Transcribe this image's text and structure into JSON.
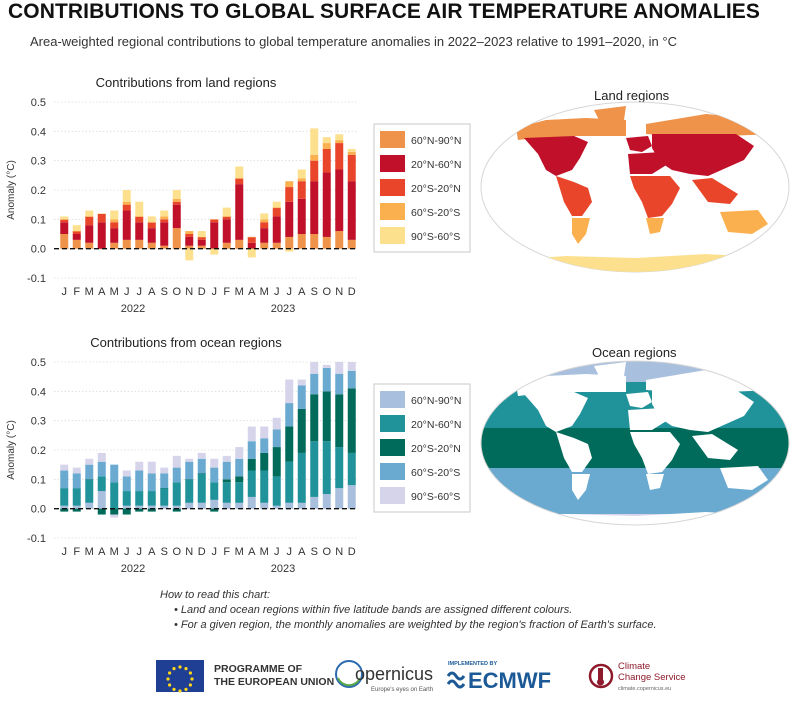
{
  "header": {
    "title": "CONTRIBUTIONS TO GLOBAL SURFACE AIR TEMPERATURE ANOMALIES",
    "subtitle": "Area-weighted regional contributions to global temperature anomalies in 2022–2023 relative to 1991–2020, in °C"
  },
  "colors": {
    "land": {
      "60°N-90°N": "#f0934a",
      "20°N-60°N": "#c0102a",
      "20°S-20°N": "#e8452a",
      "60°S-20°S": "#fbb050",
      "90°S-60°S": "#fde08e"
    },
    "ocean": {
      "60°N-90°N": "#a9bfde",
      "20°N-60°N": "#1f929a",
      "20°S-20°N": "#006b5a",
      "60°S-20°S": "#6aaad0",
      "90°S-60°S": "#d5d4ea"
    }
  },
  "maps": {
    "land": {
      "title": "Land regions"
    },
    "ocean": {
      "title": "Ocean regions"
    }
  },
  "chart_data": [
    {
      "type": "bar",
      "stacked": true,
      "title": "Contributions from land regions",
      "ylabel": "Anomaly (°C)",
      "ylim": [
        -0.1,
        0.5
      ],
      "yticks": [
        "-0.1",
        "0.0",
        "0.1",
        "0.2",
        "0.3",
        "0.4",
        "0.5"
      ],
      "categories": [
        "J",
        "F",
        "M",
        "A",
        "M",
        "J",
        "J",
        "A",
        "S",
        "O",
        "N",
        "D",
        "J",
        "F",
        "M",
        "A",
        "M",
        "J",
        "J",
        "A",
        "S",
        "O",
        "N",
        "D"
      ],
      "years": [
        "2022",
        "2023"
      ],
      "zero_line": "dashed",
      "legend_position": "right",
      "series": [
        {
          "name": "60°N-90°N",
          "values": [
            0.05,
            0.03,
            0.02,
            0.0,
            0.02,
            0.03,
            0.03,
            0.02,
            0.01,
            0.07,
            0.01,
            0.01,
            0.0,
            0.02,
            0.03,
            0.0,
            0.02,
            0.02,
            0.04,
            0.05,
            0.05,
            0.04,
            0.06,
            0.03
          ]
        },
        {
          "name": "20°N-60°N",
          "values": [
            0.04,
            0.02,
            0.06,
            0.09,
            0.05,
            0.1,
            0.06,
            0.05,
            0.08,
            0.08,
            0.03,
            0.02,
            0.09,
            0.08,
            0.19,
            0.02,
            0.05,
            0.09,
            0.12,
            0.12,
            0.18,
            0.22,
            0.21,
            0.2
          ]
        },
        {
          "name": "20°S-20°N",
          "values": [
            0.01,
            0.01,
            0.03,
            0.03,
            0.02,
            0.02,
            0.02,
            0.02,
            0.01,
            0.01,
            0.01,
            0.01,
            0.01,
            0.01,
            0.02,
            0.02,
            0.02,
            0.03,
            0.05,
            0.06,
            0.07,
            0.08,
            0.09,
            0.09
          ]
        },
        {
          "name": "60°S-20°S",
          "values": [
            0.0,
            0.0,
            0.0,
            0.0,
            0.01,
            0.01,
            0.0,
            0.0,
            0.01,
            0.01,
            0.01,
            0.0,
            0.0,
            0.0,
            0.0,
            0.0,
            0.01,
            0.0,
            0.02,
            0.01,
            0.02,
            0.02,
            0.01,
            0.01
          ]
        },
        {
          "name": "90°S-60°S",
          "values": [
            0.01,
            0.02,
            0.02,
            0.0,
            0.03,
            0.04,
            0.05,
            0.02,
            0.02,
            0.03,
            -0.04,
            0.02,
            -0.02,
            0.03,
            0.04,
            -0.03,
            0.02,
            0.02,
            -0.01,
            0.03,
            0.09,
            0.02,
            0.02,
            0.01
          ]
        }
      ]
    },
    {
      "type": "bar",
      "stacked": true,
      "title": "Contributions from ocean regions",
      "ylabel": "Anomaly (°C)",
      "ylim": [
        -0.1,
        0.5
      ],
      "yticks": [
        "-0.1",
        "0.0",
        "0.1",
        "0.2",
        "0.3",
        "0.4",
        "0.5"
      ],
      "categories": [
        "J",
        "F",
        "M",
        "A",
        "M",
        "J",
        "J",
        "A",
        "S",
        "O",
        "N",
        "D",
        "J",
        "F",
        "M",
        "A",
        "M",
        "J",
        "J",
        "A",
        "S",
        "O",
        "N",
        "D"
      ],
      "years": [
        "2022",
        "2023"
      ],
      "zero_line": "dashed",
      "legend_position": "right",
      "series": [
        {
          "name": "60°N-90°N",
          "values": [
            0.01,
            0.01,
            0.02,
            0.06,
            0.0,
            0.01,
            0.01,
            0.01,
            0.01,
            0.01,
            0.02,
            0.02,
            0.03,
            0.02,
            0.02,
            0.04,
            0.02,
            0.01,
            0.02,
            0.02,
            0.04,
            0.05,
            0.07,
            0.08
          ]
        },
        {
          "name": "20°N-60°N",
          "values": [
            0.06,
            0.06,
            0.08,
            0.05,
            0.09,
            0.05,
            0.05,
            0.05,
            0.06,
            0.08,
            0.08,
            0.1,
            0.06,
            0.07,
            0.07,
            0.09,
            0.11,
            0.1,
            0.14,
            0.17,
            0.19,
            0.18,
            0.14,
            0.11
          ]
        },
        {
          "name": "20°S-20°N",
          "values": [
            -0.01,
            -0.01,
            0.0,
            -0.02,
            -0.02,
            -0.02,
            -0.01,
            -0.01,
            0.0,
            -0.01,
            0.0,
            0.0,
            -0.01,
            0.01,
            0.02,
            0.04,
            0.06,
            0.1,
            0.12,
            0.15,
            0.16,
            0.17,
            0.18,
            0.22
          ]
        },
        {
          "name": "60°S-20°S",
          "values": [
            0.06,
            0.05,
            0.05,
            0.05,
            0.06,
            0.05,
            0.07,
            0.06,
            0.05,
            0.05,
            0.06,
            0.05,
            0.05,
            0.06,
            0.06,
            0.06,
            0.05,
            0.06,
            0.08,
            0.08,
            0.07,
            0.08,
            0.07,
            0.06
          ]
        },
        {
          "name": "90°S-60°S",
          "values": [
            0.02,
            0.02,
            0.02,
            0.03,
            -0.01,
            0.02,
            0.03,
            0.04,
            0.02,
            0.04,
            0.01,
            0.02,
            0.03,
            0.02,
            0.04,
            0.05,
            0.04,
            0.04,
            0.08,
            0.02,
            0.04,
            0.01,
            0.04,
            0.03
          ]
        }
      ]
    }
  ],
  "howto": {
    "heading": "How to read this chart:",
    "bullets": [
      "•  Land and ocean regions within five latitude bands are assigned different colours.",
      "•  For a given region, the monthly anomalies are weighted by the region's fraction of Earth's surface."
    ]
  },
  "footer": {
    "eu_line1": "PROGRAMME OF",
    "eu_line2": "THE EUROPEAN UNION",
    "copernicus_name": "opernicus",
    "copernicus_tag": "Europe's eyes on Earth",
    "ecmwf_small": "IMPLEMENTED BY",
    "ecmwf_name": "ECMWF",
    "c3s_line1": "Climate",
    "c3s_line2": "Change Service",
    "c3s_url": "climate.copernicus.eu"
  }
}
